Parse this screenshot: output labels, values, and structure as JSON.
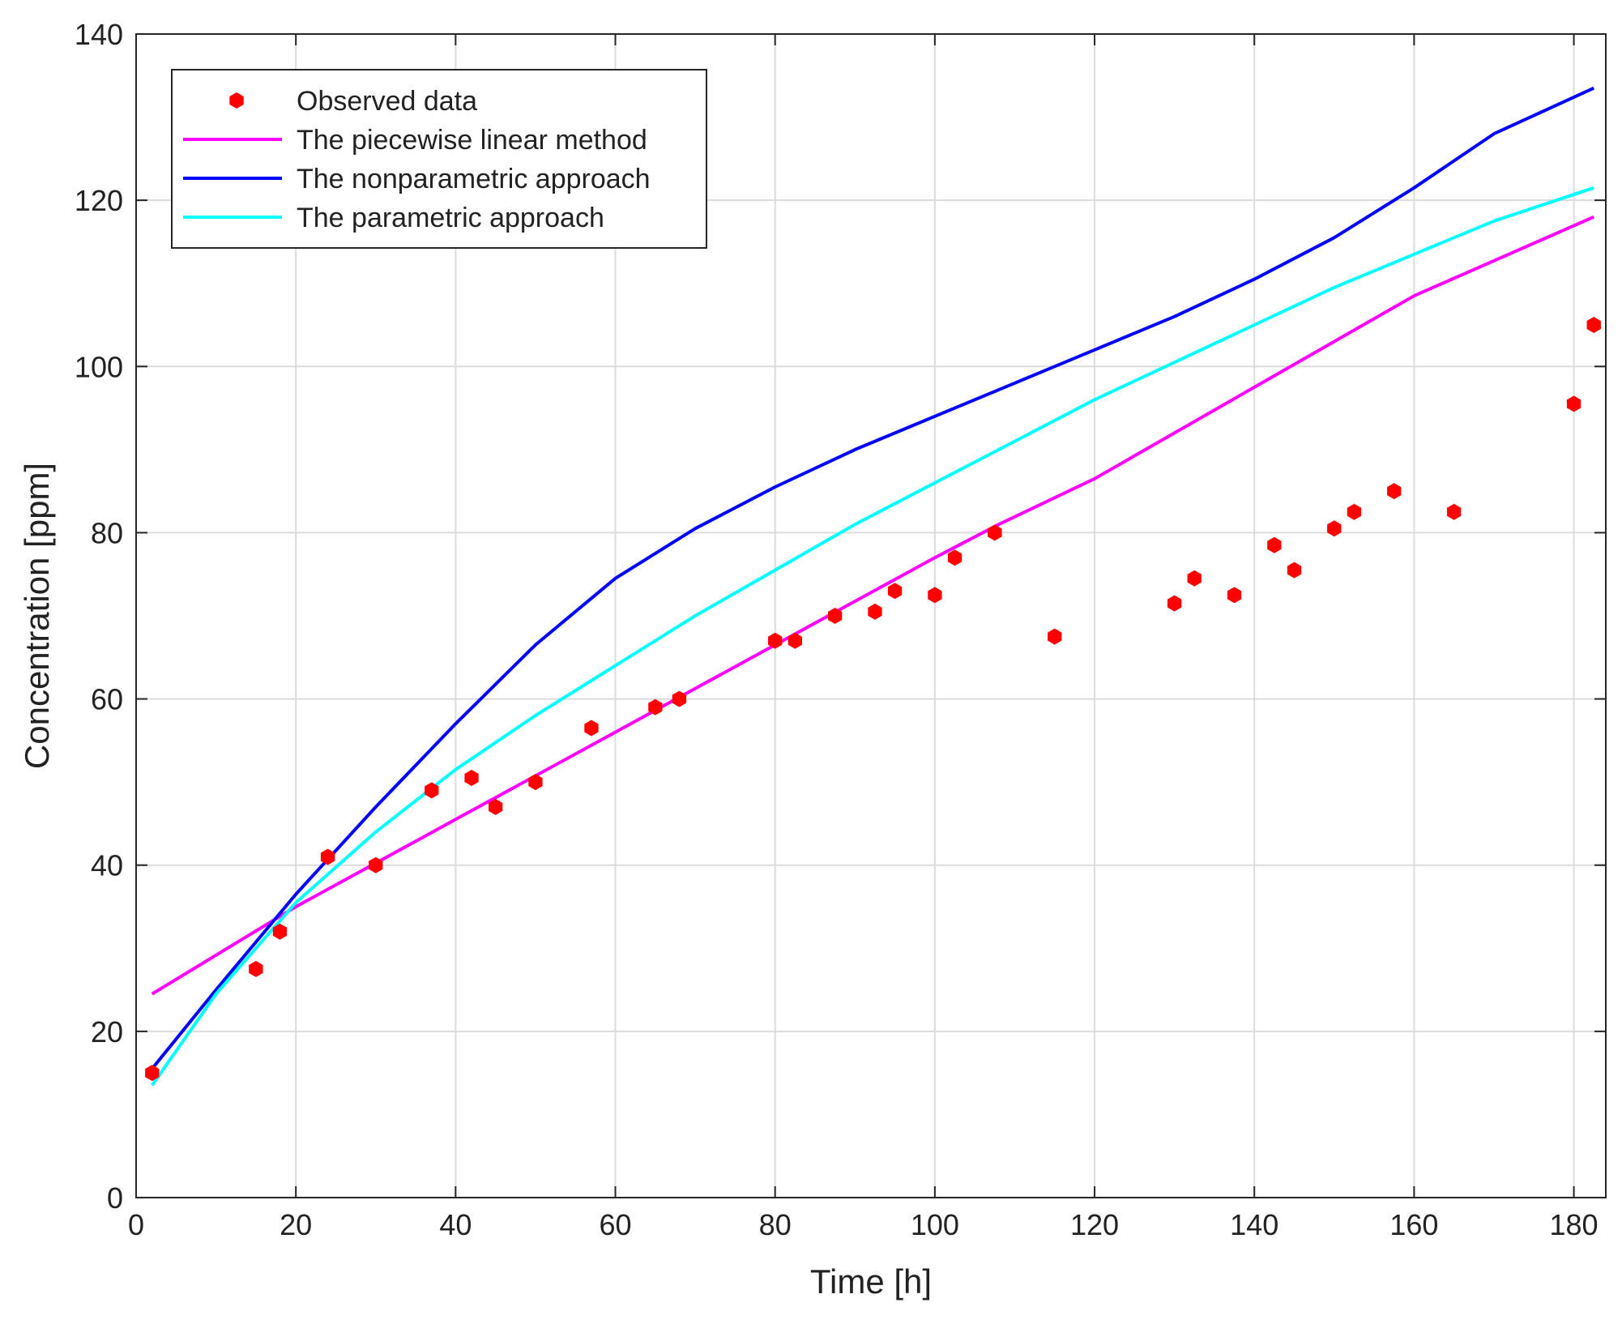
{
  "chart_data": {
    "type": "line",
    "title": "",
    "xlabel": "Time [h]",
    "ylabel": "Concentration [ppm]",
    "xlim": [
      0,
      184
    ],
    "ylim": [
      0,
      140
    ],
    "xticks": [
      0,
      20,
      40,
      60,
      80,
      100,
      120,
      140,
      160,
      180
    ],
    "yticks": [
      0,
      20,
      40,
      60,
      80,
      100,
      120,
      140
    ],
    "xtick_labels": [
      "0",
      "20",
      "40",
      "60",
      "80",
      "100",
      "120",
      "140",
      "160",
      "180"
    ],
    "ytick_labels": [
      "0",
      "20",
      "40",
      "60",
      "80",
      "100",
      "120",
      "140"
    ],
    "grid": true,
    "legend_position": "top-left",
    "series": [
      {
        "name": "Observed data",
        "kind": "scatter",
        "color": "#ff0000",
        "x": [
          2,
          15,
          18,
          24,
          30,
          37,
          42,
          45,
          50,
          57,
          65,
          68,
          80,
          82.5,
          87.5,
          92.5,
          95,
          100,
          102.5,
          107.5,
          115,
          130,
          132.5,
          137.5,
          142.5,
          145,
          150,
          152.5,
          157.5,
          165,
          180,
          182.5
        ],
        "y": [
          15,
          27.5,
          32,
          41,
          40,
          49,
          50.5,
          47,
          50,
          56.5,
          59,
          60,
          67,
          67,
          70,
          70.5,
          73,
          72.5,
          77,
          80,
          67.5,
          71.5,
          74.5,
          72.5,
          78.5,
          75.5,
          80.5,
          82.5,
          85,
          82.5,
          95.5,
          105
        ]
      },
      {
        "name": "The piecewise linear method",
        "kind": "line",
        "color": "#ff00ff",
        "x": [
          2,
          20,
          40,
          60,
          80,
          100,
          108,
          120,
          140,
          160,
          182.5
        ],
        "y": [
          24.5,
          35,
          45.5,
          56,
          66.5,
          77,
          81,
          86.5,
          97.5,
          108.5,
          118
        ]
      },
      {
        "name": "The nonparametric approach",
        "kind": "line",
        "color": "#0000ff",
        "x": [
          2,
          10,
          20,
          30,
          40,
          50,
          60,
          70,
          80,
          90,
          100,
          110,
          120,
          130,
          140,
          150,
          160,
          170,
          182.5
        ],
        "y": [
          15.5,
          25,
          36.5,
          47,
          57,
          66.5,
          74.5,
          80.5,
          85.5,
          90,
          94,
          98,
          102,
          106,
          110.5,
          115.5,
          121.5,
          128,
          133.5
        ]
      },
      {
        "name": "The parametric approach",
        "kind": "line",
        "color": "#00ffff",
        "x": [
          2,
          10,
          20,
          30,
          40,
          50,
          60,
          70,
          80,
          90,
          100,
          110,
          120,
          130,
          140,
          150,
          160,
          170,
          182.5
        ],
        "y": [
          13.5,
          24.5,
          35.5,
          44,
          51.5,
          58,
          64,
          70,
          75.5,
          81,
          86,
          91,
          96,
          100.5,
          105,
          109.5,
          113.5,
          117.5,
          121.5
        ]
      }
    ]
  }
}
